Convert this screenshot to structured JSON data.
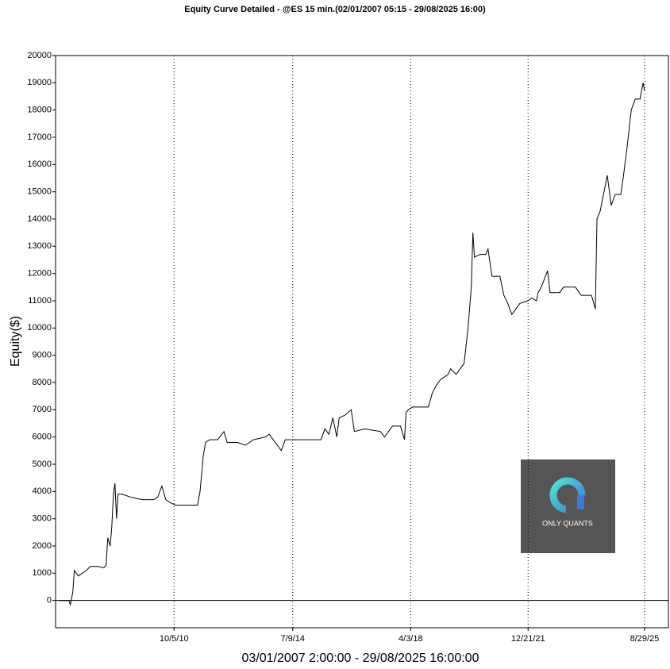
{
  "chart_data": {
    "type": "line",
    "title": "Equity Curve Detailed - @ES 15 min.(02/01/2007 05:15 - 29/08/2025 16:00)",
    "y_label": "Equity($)",
    "x_label": "03/01/2007 2:00:00 - 29/08/2025 16:00:00",
    "watermark": "ONLY QUANTS",
    "color": "#000000",
    "grid": "x",
    "xlim": [
      "2007-01-04",
      "2026-06-01"
    ],
    "xticks": [
      {
        "value": "2010-10-05",
        "label": "10/5/10"
      },
      {
        "value": "2014-07-09",
        "label": "7/9/14"
      },
      {
        "value": "2018-04-03",
        "label": "4/3/18"
      },
      {
        "value": "2021-12-21",
        "label": "12/21/21"
      },
      {
        "value": "2025-08-29",
        "label": "8/29/25"
      }
    ],
    "ylim": [
      -1000,
      20000
    ],
    "yticks": [
      0,
      1000,
      2000,
      3000,
      4000,
      5000,
      6000,
      7000,
      8000,
      9000,
      10000,
      11000,
      12000,
      13000,
      14000,
      15000,
      16000,
      17000,
      18000,
      19000,
      20000
    ],
    "x": [
      "2007-02-16",
      "2007-06-05",
      "2007-06-24",
      "2007-07-22",
      "2007-08-09",
      "2007-09-24",
      "2007-11-09",
      "2007-12-25",
      "2008-02-09",
      "2008-05-11",
      "2008-07-15",
      "2008-08-11",
      "2008-08-30",
      "2008-09-27",
      "2008-10-15",
      "2008-11-03",
      "2008-11-21",
      "2008-12-09",
      "2008-12-27",
      "2009-02-11",
      "2009-05-15",
      "2009-09-30",
      "2010-02-15",
      "2010-04-01",
      "2010-05-17",
      "2010-07-02",
      "2010-08-17",
      "2010-10-21",
      "2011-02-18",
      "2011-07-05",
      "2011-08-02",
      "2011-09-08",
      "2011-10-05",
      "2011-11-20",
      "2012-02-20",
      "2012-05-04",
      "2012-06-10",
      "2012-10-08",
      "2013-01-08",
      "2013-04-10",
      "2013-08-26",
      "2013-10-11",
      "2014-01-11",
      "2014-02-26",
      "2014-04-13",
      "2014-08-28",
      "2015-01-13",
      "2015-05-31",
      "2015-07-16",
      "2015-08-31",
      "2015-10-16",
      "2015-12-01",
      "2015-12-28",
      "2016-03-02",
      "2016-05-15",
      "2016-06-21",
      "2016-10-19",
      "2017-04-20",
      "2017-06-05",
      "2017-09-05",
      "2017-12-06",
      "2018-01-21",
      "2018-02-09",
      "2018-03-08",
      "2018-04-23",
      "2018-10-24",
      "2018-12-09",
      "2019-01-24",
      "2019-03-11",
      "2019-06-11",
      "2019-07-08",
      "2019-09-11",
      "2019-12-12",
      "2020-01-27",
      "2020-03-04",
      "2020-03-23",
      "2020-04-10",
      "2020-06-14",
      "2020-08-17",
      "2020-09-14",
      "2020-10-29",
      "2021-01-29",
      "2021-03-16",
      "2021-05-01",
      "2021-06-16",
      "2021-09-16",
      "2021-12-17",
      "2022-02-01",
      "2022-03-28",
      "2022-04-16",
      "2022-05-22",
      "2022-08-04",
      "2022-09-01",
      "2022-12-20",
      "2023-02-04",
      "2023-06-22",
      "2023-08-26",
      "2023-12-24",
      "2024-02-07",
      "2024-02-26",
      "2024-04-03",
      "2024-06-24",
      "2024-08-09",
      "2024-09-24",
      "2024-11-27",
      "2024-12-25",
      "2025-02-10",
      "2025-03-28",
      "2025-05-13",
      "2025-07-07",
      "2025-08-13",
      "2025-08-29"
    ],
    "series": [
      {
        "name": "Equity",
        "color": "#000000",
        "values": [
          0,
          0,
          -150,
          300,
          1100,
          900,
          1000,
          1100,
          1250,
          1250,
          1200,
          1300,
          2300,
          2000,
          2700,
          3900,
          4300,
          3000,
          3900,
          3900,
          3800,
          3700,
          3700,
          3800,
          4200,
          3700,
          3600,
          3500,
          3500,
          3500,
          4000,
          5300,
          5800,
          5900,
          5900,
          6200,
          5800,
          5800,
          5700,
          5900,
          6000,
          6100,
          5700,
          5500,
          5900,
          5900,
          5900,
          5900,
          6300,
          6100,
          6700,
          6000,
          6700,
          6800,
          7000,
          6200,
          6300,
          6200,
          6000,
          6400,
          6400,
          5900,
          6900,
          7000,
          7100,
          7100,
          7600,
          7900,
          8100,
          8300,
          8500,
          8300,
          8700,
          10000,
          11500,
          13500,
          12600,
          12700,
          12700,
          12900,
          11900,
          11900,
          11200,
          10900,
          10500,
          10900,
          11000,
          11100,
          11000,
          11300,
          11500,
          12100,
          11300,
          11300,
          11500,
          11500,
          11200,
          11200,
          10700,
          14000,
          14300,
          15600,
          14500,
          14900,
          14900,
          15500,
          16700,
          18000,
          18400,
          18400,
          19000,
          18700
        ]
      }
    ]
  }
}
